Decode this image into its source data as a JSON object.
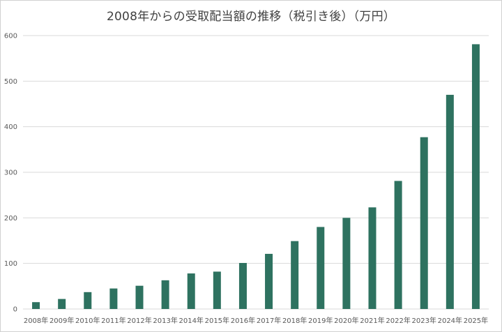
{
  "chart_data": {
    "type": "bar",
    "title": "2008年からの受取配当額の推移（税引き後）（万円）",
    "xlabel": "",
    "ylabel": "",
    "categories": [
      "2008年",
      "2009年",
      "2010年",
      "2011年",
      "2012年",
      "2013年",
      "2014年",
      "2015年",
      "2016年",
      "2017年",
      "2018年",
      "2019年",
      "2020年",
      "2021年",
      "2022年",
      "2023年",
      "2024年",
      "2025年"
    ],
    "values": [
      15,
      22,
      37,
      45,
      51,
      63,
      78,
      82,
      101,
      121,
      149,
      180,
      200,
      223,
      281,
      377,
      470,
      581
    ],
    "ylim": [
      0,
      600
    ],
    "yticks": [
      0,
      100,
      200,
      300,
      400,
      500,
      600
    ],
    "grid": true,
    "bar_color": "#2e7260",
    "grid_color": "#d9d9d9"
  }
}
